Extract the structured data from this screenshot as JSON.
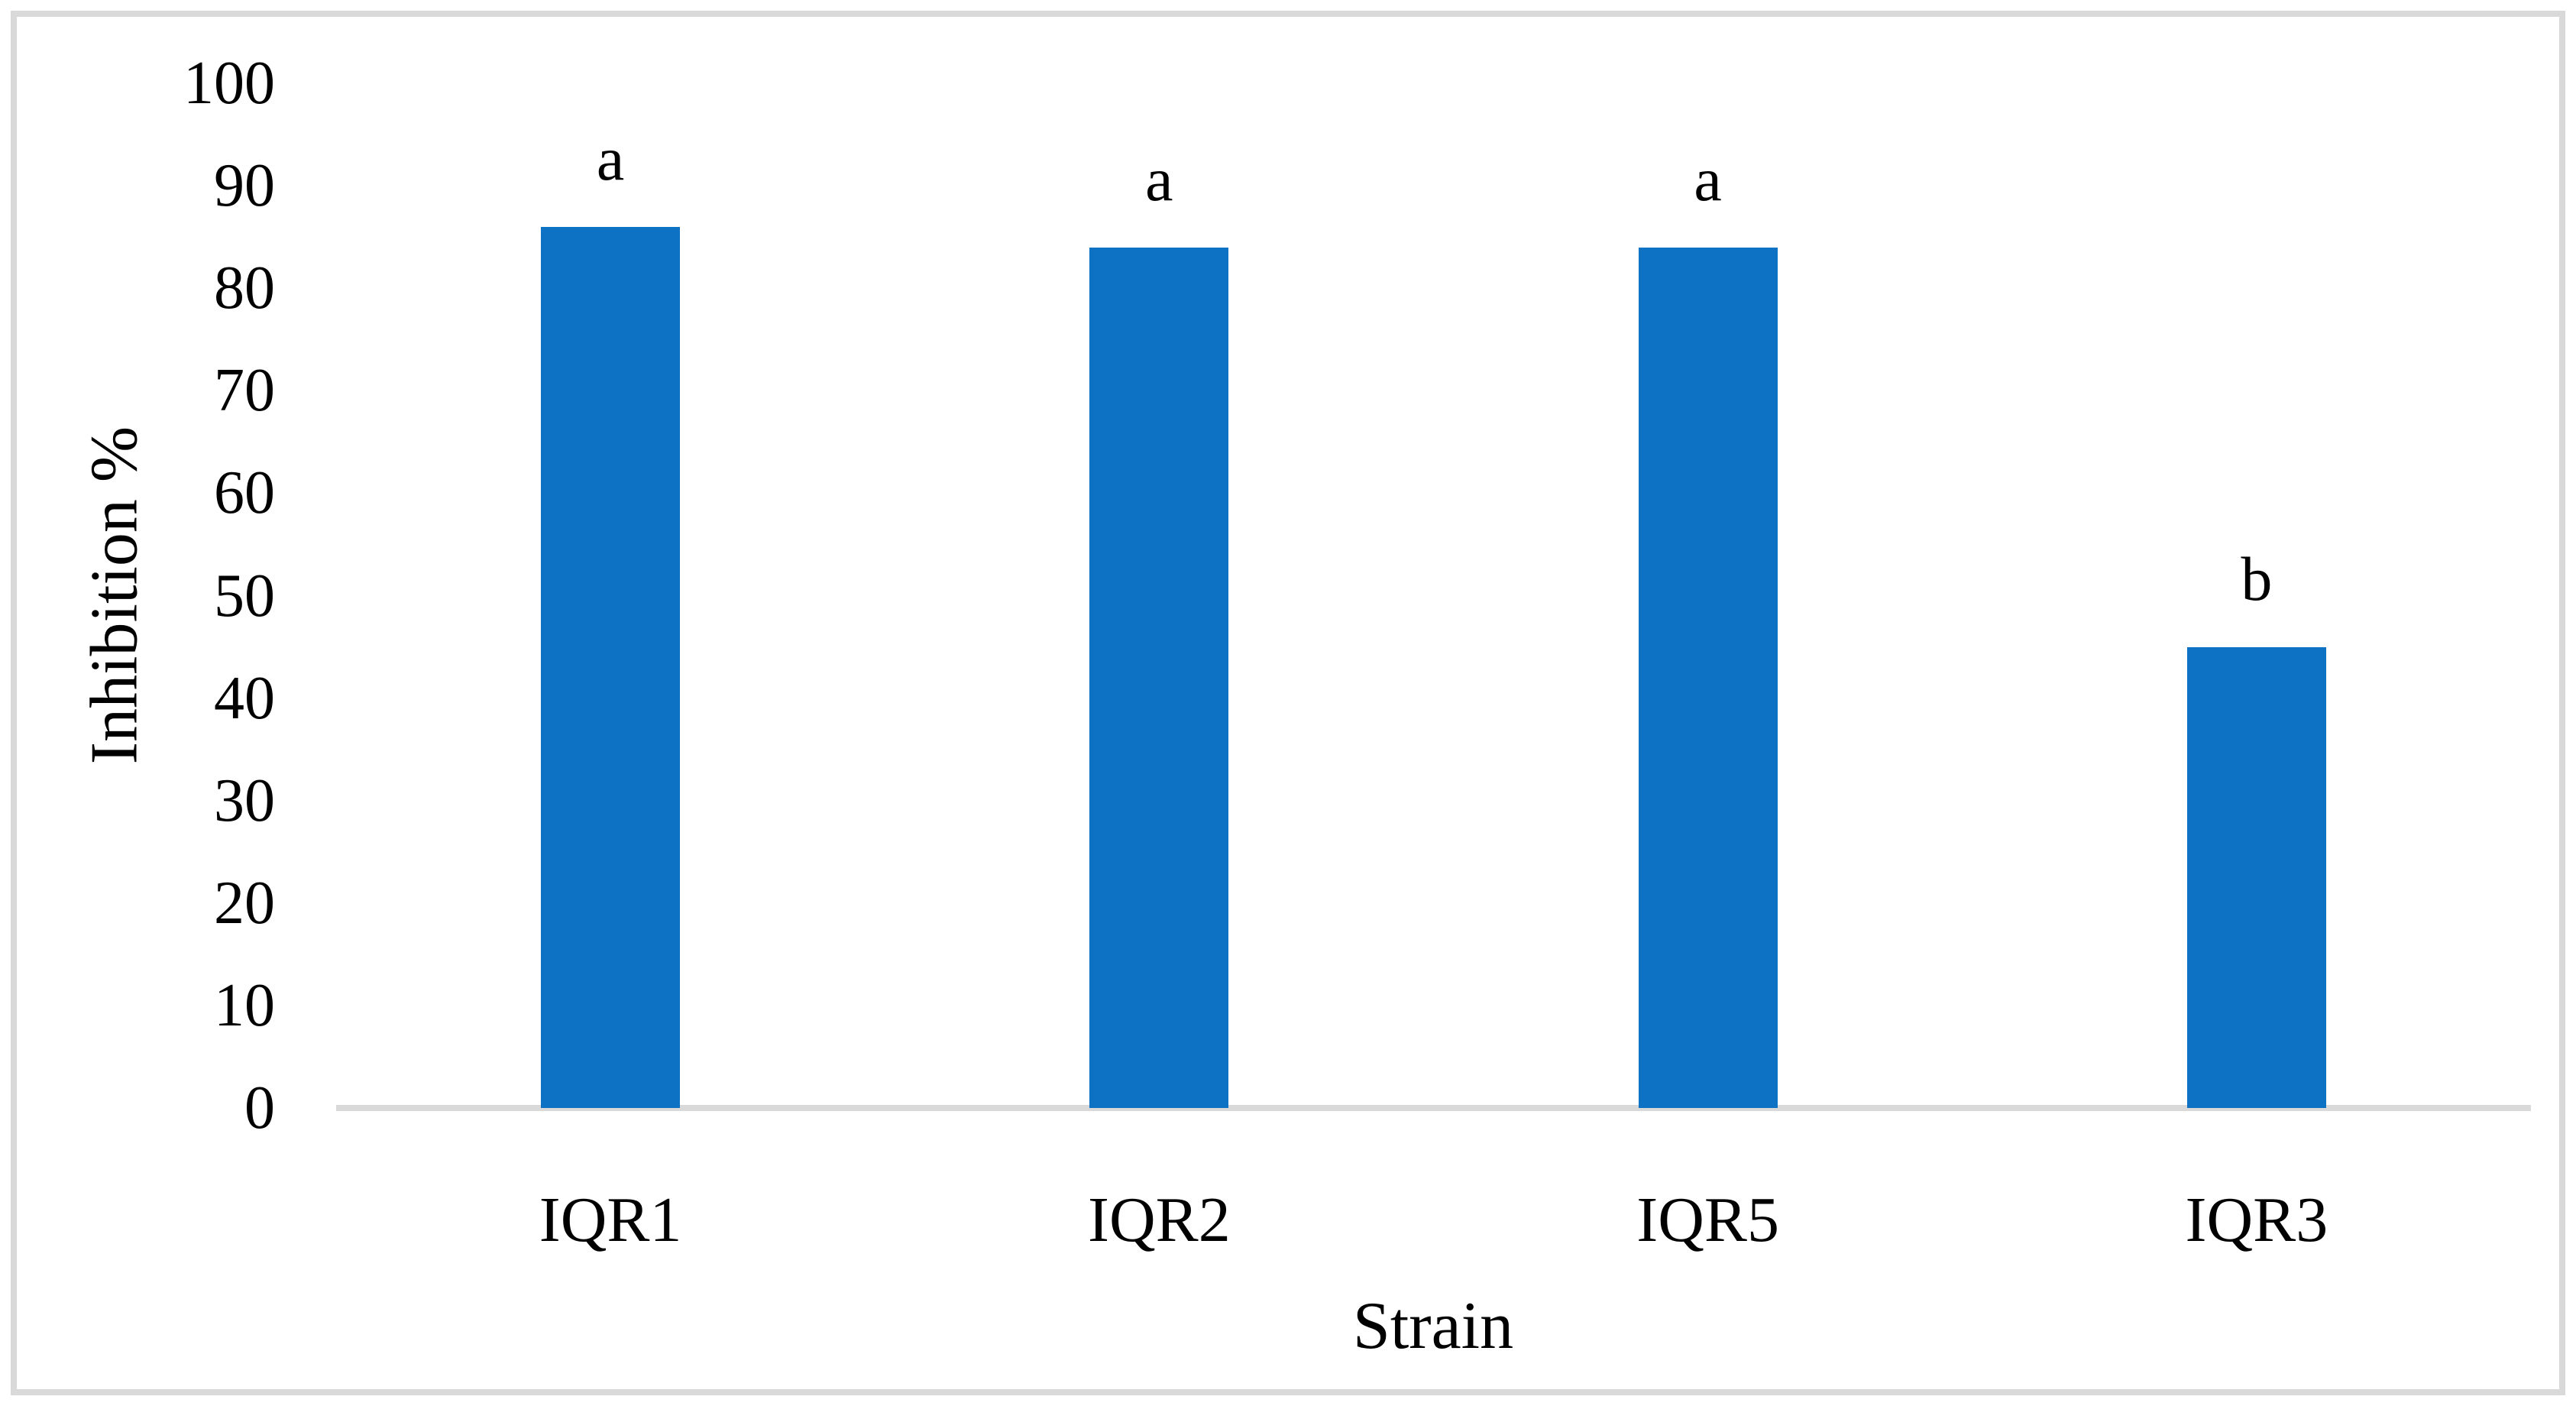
{
  "figure": {
    "background_color": "#ffffff",
    "frame_border_color": "#d9d9d9"
  },
  "chart_data": {
    "type": "bar",
    "title": "",
    "categories": [
      "IQR1",
      "IQR2",
      "IQR5",
      "IQR3"
    ],
    "values": [
      86,
      84,
      84,
      45
    ],
    "bar_labels": [
      "a",
      "a",
      "a",
      "b"
    ],
    "xlabel": "Strain",
    "ylabel": "Inhibition %",
    "ylim": [
      0,
      100
    ],
    "yticks": [
      0,
      10,
      20,
      30,
      40,
      50,
      60,
      70,
      80,
      90,
      100
    ],
    "bar_color": "#0d72c4",
    "axis_line_color": "#d9d9d9",
    "grid": false,
    "legend_position": "none"
  }
}
